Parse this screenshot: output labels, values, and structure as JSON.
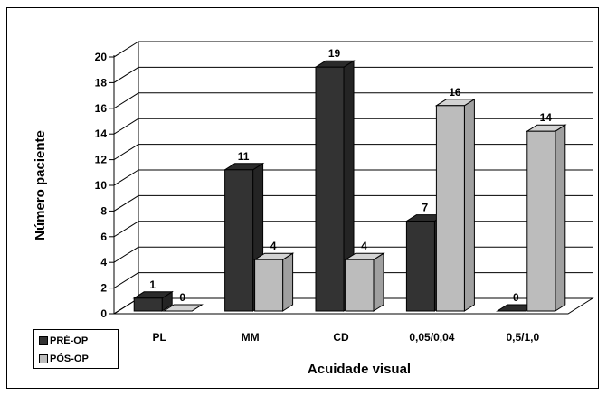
{
  "chart_data": {
    "type": "bar",
    "title": "",
    "xlabel": "Acuidade  visual",
    "ylabel": "Número  paciente",
    "ylim": [
      0,
      20
    ],
    "yticks": [
      "0",
      "2",
      "4",
      "6",
      "8",
      "10",
      "12",
      "14",
      "16",
      "18",
      "20"
    ],
    "categories": [
      "PL",
      "MM",
      "CD",
      "0,05/0,04",
      "0,5/1,0"
    ],
    "series": [
      {
        "name": "PRÉ-OP",
        "values": [
          1,
          11,
          19,
          7,
          0
        ],
        "color": "#333333"
      },
      {
        "name": "PÓS-OP",
        "values": [
          0,
          4,
          4,
          16,
          14
        ],
        "color": "#bcbcbc"
      }
    ],
    "grid": true,
    "legend_position": "bottom-left"
  }
}
